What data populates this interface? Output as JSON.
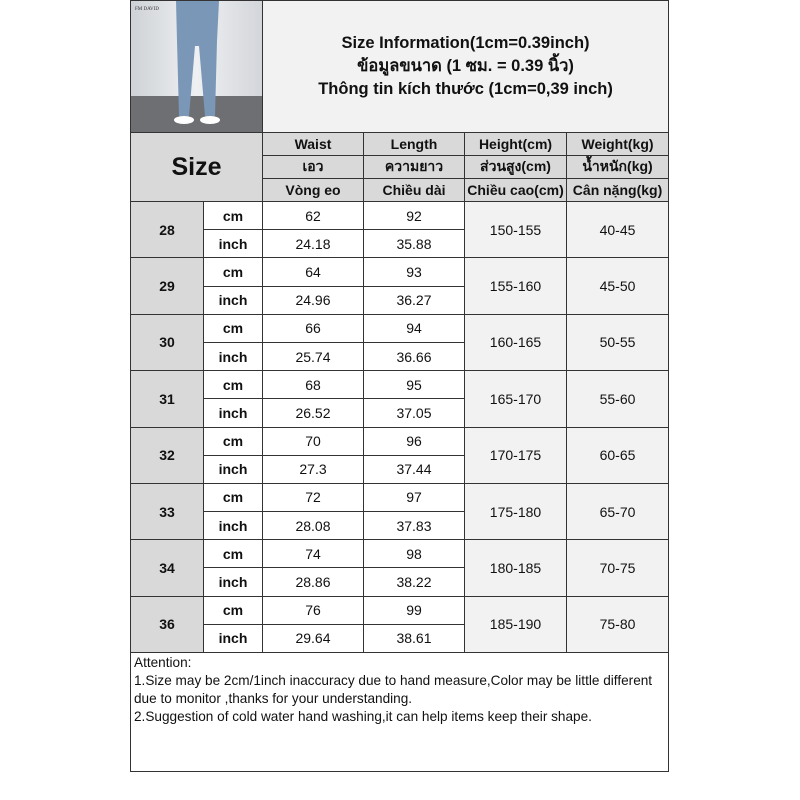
{
  "brand_mark": "FM DAVID",
  "title": {
    "line1": "Size Information(1cm=0.39inch)",
    "line2": "ข้อมูลขนาด (1 ซม. = 0.39 นิ้ว)",
    "line3": "Thông tin kích thước (1cm=0,39 inch)"
  },
  "headers": {
    "size": "Size",
    "columns": [
      [
        "Waist",
        "เอว",
        "Vòng eo"
      ],
      [
        "Length",
        "ความยาว",
        "Chiều dài"
      ],
      [
        "Height(cm)",
        "ส่วนสูง(cm)",
        "Chiều cao(cm)"
      ],
      [
        "Weight(kg)",
        "น้ำหนัก(kg)",
        "Cân nặng(kg)"
      ]
    ]
  },
  "units": {
    "cm": "cm",
    "inch": "inch"
  },
  "rows": [
    {
      "size": "28",
      "waist_cm": "62",
      "length_cm": "92",
      "waist_in": "24.18",
      "length_in": "35.88",
      "height": "150-155",
      "weight": "40-45"
    },
    {
      "size": "29",
      "waist_cm": "64",
      "length_cm": "93",
      "waist_in": "24.96",
      "length_in": "36.27",
      "height": "155-160",
      "weight": "45-50"
    },
    {
      "size": "30",
      "waist_cm": "66",
      "length_cm": "94",
      "waist_in": "25.74",
      "length_in": "36.66",
      "height": "160-165",
      "weight": "50-55"
    },
    {
      "size": "31",
      "waist_cm": "68",
      "length_cm": "95",
      "waist_in": "26.52",
      "length_in": "37.05",
      "height": "165-170",
      "weight": "55-60"
    },
    {
      "size": "32",
      "waist_cm": "70",
      "length_cm": "96",
      "waist_in": "27.3",
      "length_in": "37.44",
      "height": "170-175",
      "weight": "60-65"
    },
    {
      "size": "33",
      "waist_cm": "72",
      "length_cm": "97",
      "waist_in": "28.08",
      "length_in": "37.83",
      "height": "175-180",
      "weight": "65-70"
    },
    {
      "size": "34",
      "waist_cm": "74",
      "length_cm": "98",
      "waist_in": "28.86",
      "length_in": "38.22",
      "height": "180-185",
      "weight": "70-75"
    },
    {
      "size": "36",
      "waist_cm": "76",
      "length_cm": "99",
      "waist_in": "29.64",
      "length_in": "38.61",
      "height": "185-190",
      "weight": "75-80"
    }
  ],
  "attention": {
    "heading": "Attention:",
    "line1": "1.Size may be 2cm/1inch inaccuracy due to hand measure,Color may be little different due to monitor ,thanks for your understanding.",
    "line2": "2.Suggestion of cold water hand washing,it can help items keep their shape."
  }
}
